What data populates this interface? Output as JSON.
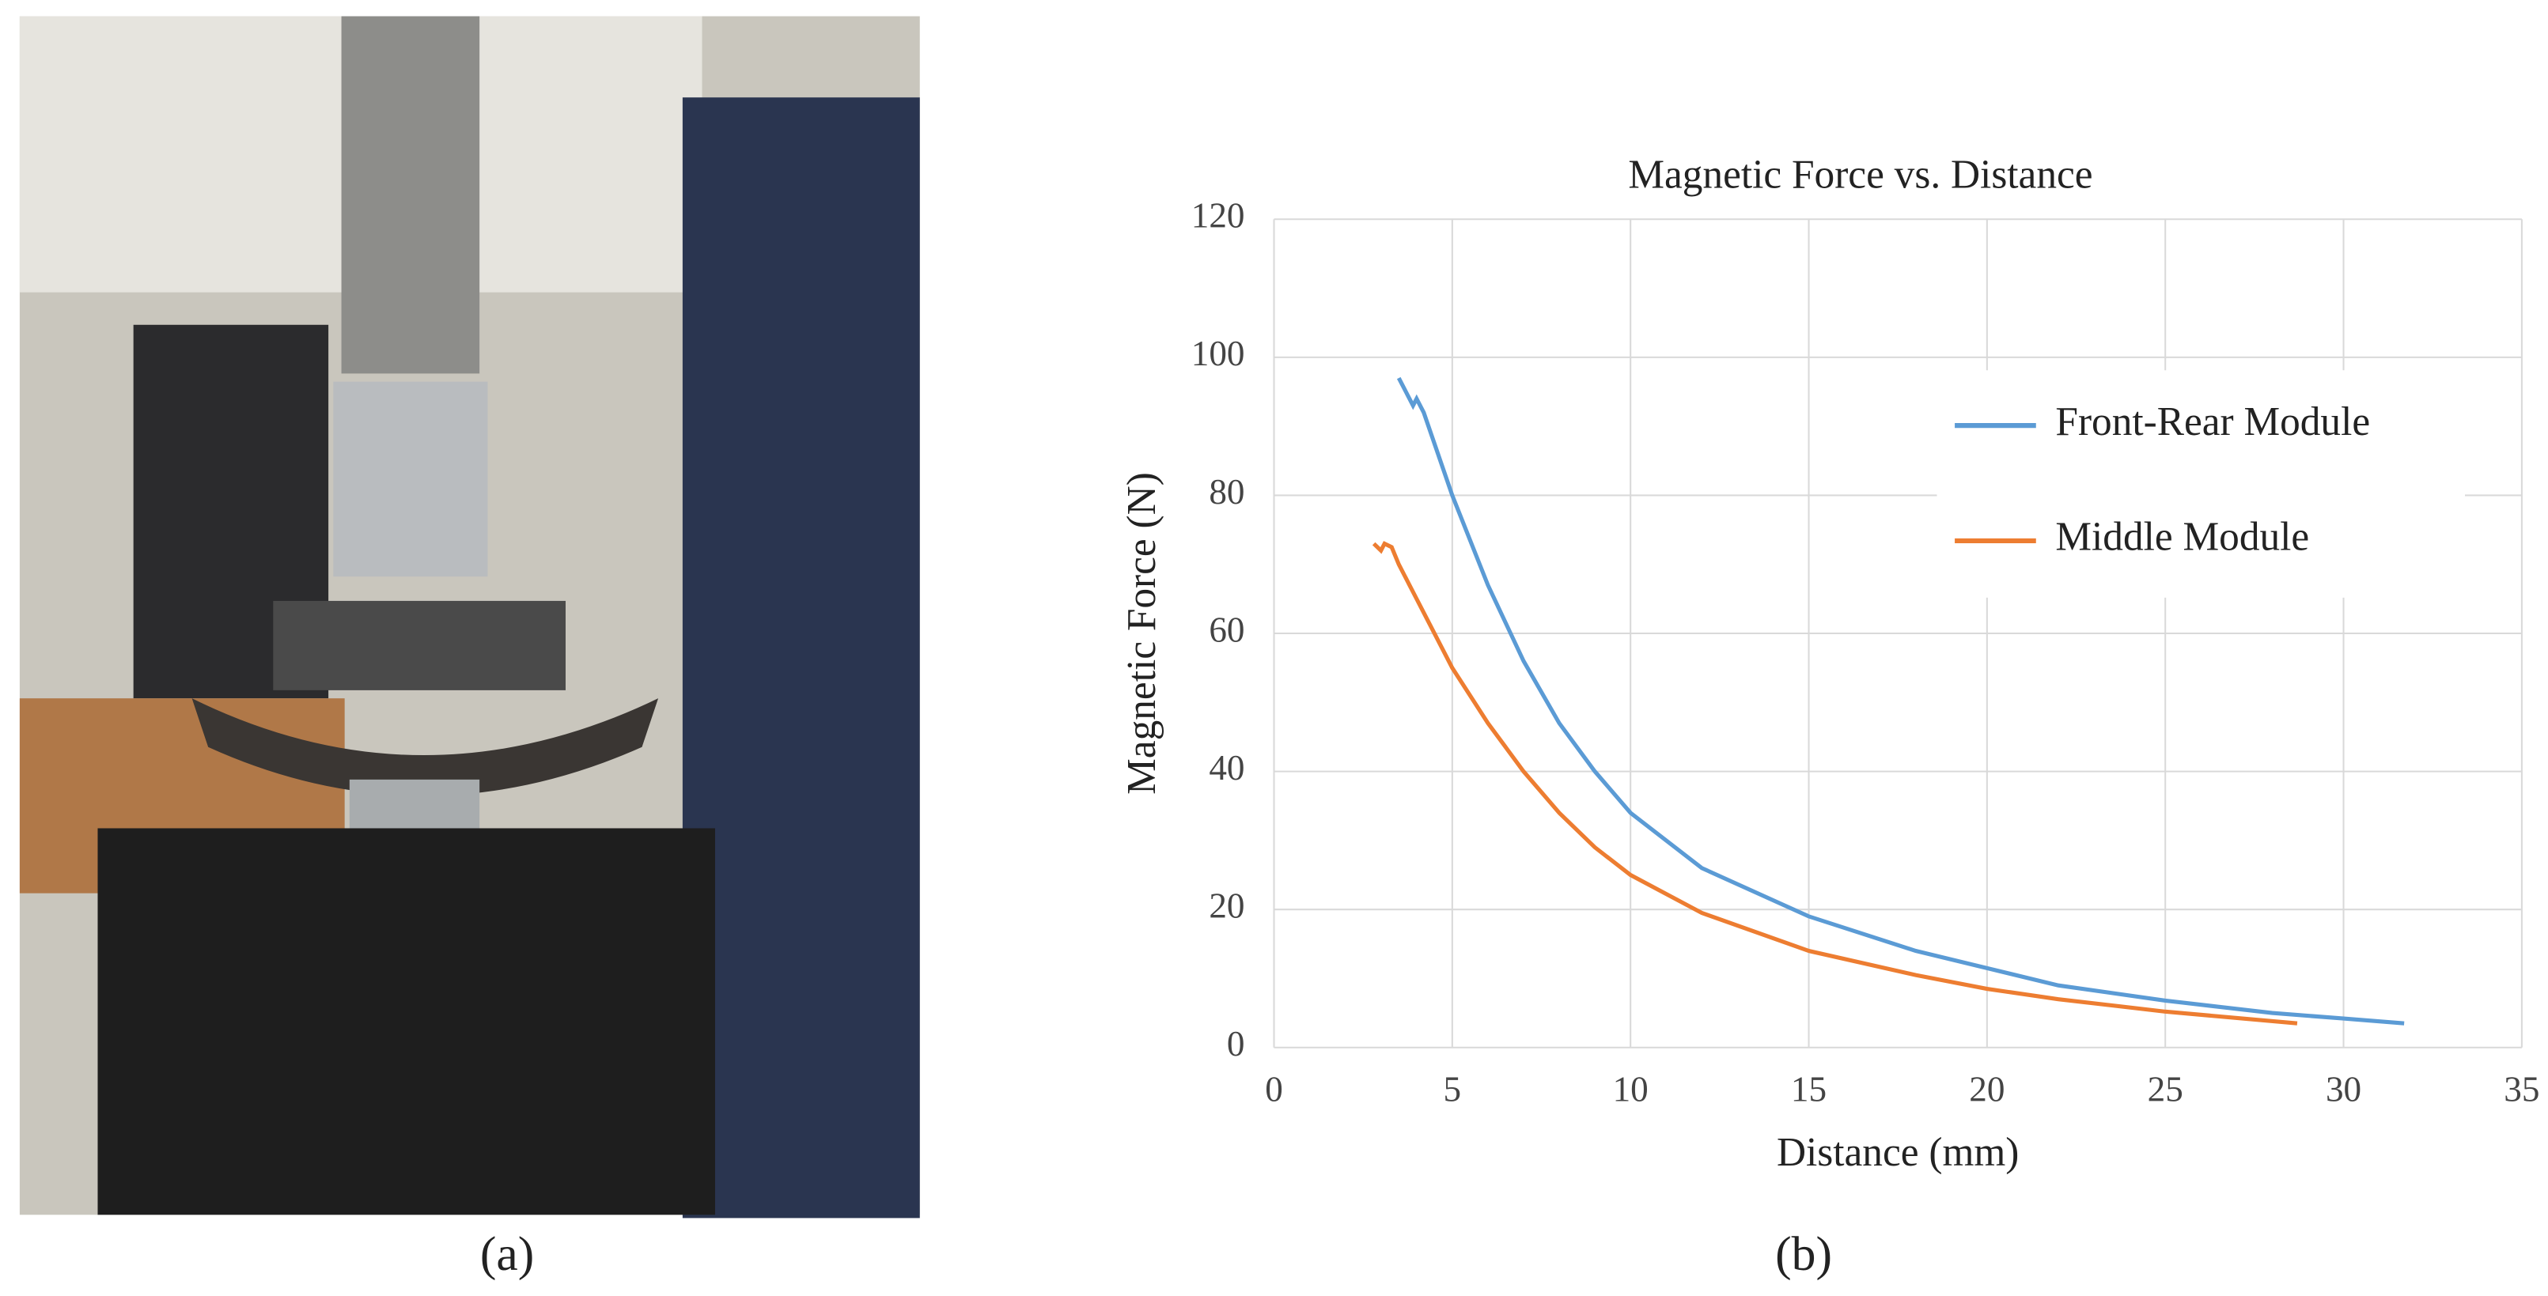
{
  "panels": [
    "(a)",
    "(b)"
  ],
  "chart_data": {
    "type": "line",
    "title": "Magnetic Force vs. Distance",
    "x_label": "Distance (mm)",
    "y_label": "Magnetic Force (N)",
    "xlim": [
      0,
      35
    ],
    "xticks": [
      0,
      5,
      10,
      15,
      20,
      25,
      30,
      35
    ],
    "ylim": [
      0,
      120
    ],
    "yticks": [
      0,
      20,
      40,
      60,
      80,
      100,
      120
    ],
    "grid": true,
    "legend": "upper right",
    "series": [
      {
        "name": "Front-Rear Module",
        "color": "#5b9bd5",
        "x": [
          3.5,
          3.7,
          3.9,
          4.0,
          4.2,
          5,
          6,
          7,
          8,
          9,
          10,
          12,
          15,
          18,
          20,
          22,
          25,
          28,
          30,
          31.7
        ],
        "values": [
          97,
          95,
          93,
          94,
          92,
          80,
          67,
          56,
          47,
          40,
          34,
          26,
          19,
          14,
          11.5,
          9,
          6.8,
          5,
          4.2,
          3.5
        ]
      },
      {
        "name": "Middle Module",
        "color": "#ed7d31",
        "x": [
          2.8,
          3.0,
          3.1,
          3.3,
          3.5,
          4,
          5,
          6,
          7,
          8,
          9,
          10,
          12,
          15,
          18,
          20,
          22,
          25,
          28.7
        ],
        "values": [
          73,
          72,
          73,
          72.5,
          70,
          65,
          55,
          47,
          40,
          34,
          29,
          25,
          19.5,
          14,
          10.5,
          8.5,
          7,
          5.2,
          3.5
        ]
      }
    ]
  }
}
